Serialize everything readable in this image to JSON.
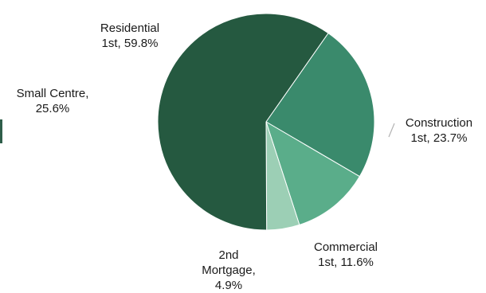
{
  "chart_data": {
    "type": "pie",
    "slices": [
      {
        "lines": [
          "Residential",
          "1st, 59.8%"
        ],
        "value": 59.8,
        "color": "#255940"
      },
      {
        "lines": [
          "Construction",
          "1st, 23.7%"
        ],
        "value": 23.7,
        "color": "#3a8a6c"
      },
      {
        "lines": [
          "Commercial",
          "1st, 11.6%"
        ],
        "value": 11.6,
        "color": "#5aad8a"
      },
      {
        "lines": [
          "2nd",
          "Mortgage,",
          "4.9%"
        ],
        "value": 4.9,
        "color": "#9ccfb5"
      }
    ],
    "other_labels": [
      {
        "lines": [
          "Small Centre,",
          "25.6%"
        ]
      }
    ],
    "leader_color": "#b3b3b3"
  }
}
